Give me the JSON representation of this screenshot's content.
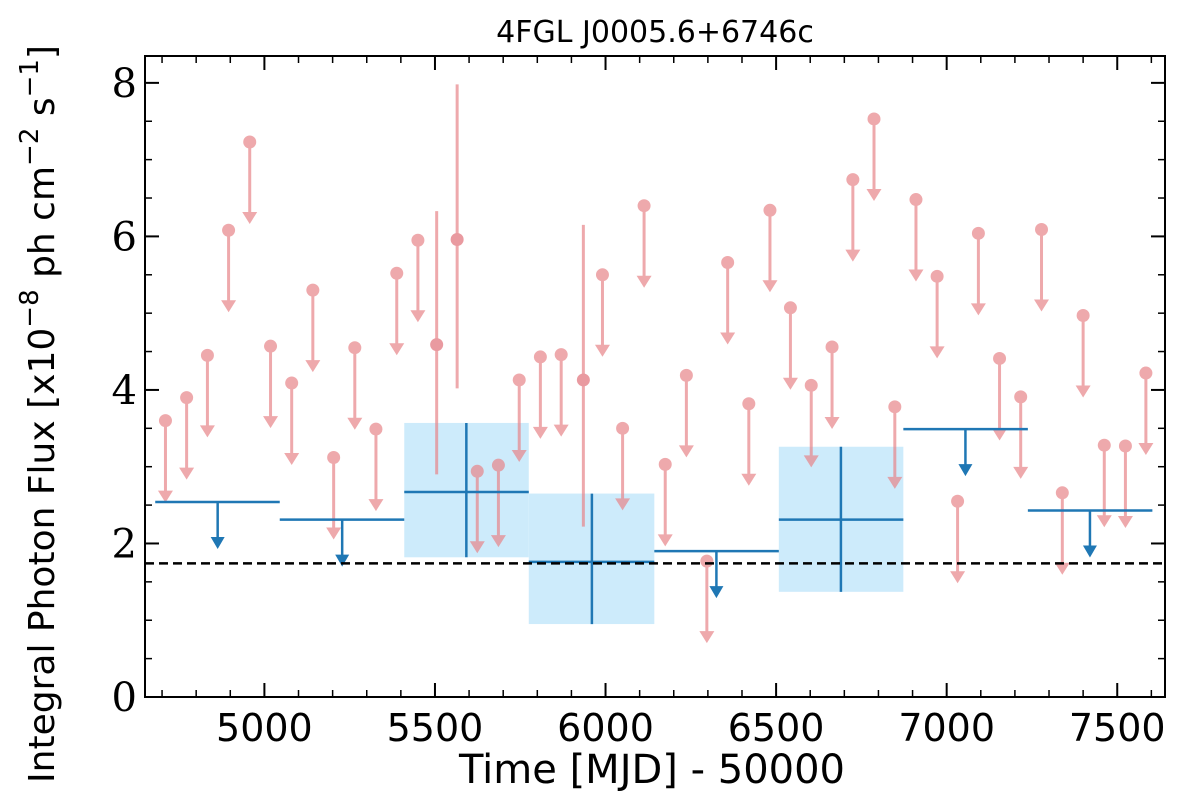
{
  "chart_data": {
    "type": "scatter",
    "title": "4FGL J0005.6+6746c",
    "xlabel": "Time [MJD] - 50000",
    "ylabel_prefix": "Integral Photon Flux [x10",
    "ylabel_exp1": "−8",
    "ylabel_mid": " ph cm",
    "ylabel_exp2": "−2",
    "ylabel_mid2": " s",
    "ylabel_exp3": "−1",
    "ylabel_suffix": "]",
    "xlim": [
      4650,
      7640
    ],
    "ylim": [
      0,
      8.35
    ],
    "xticks": [
      5000,
      5500,
      6000,
      6500,
      7000,
      7500
    ],
    "yticks": [
      0,
      2,
      4,
      6,
      8
    ],
    "xtick_labels": [
      "5000",
      "5500",
      "6000",
      "6500",
      "7000",
      "7500"
    ],
    "ytick_labels": [
      "0",
      "2",
      "4",
      "6",
      "8"
    ],
    "reference_flux": 1.74,
    "colors": {
      "short_bins": "#e8858a",
      "long_bins": "#1f77b4",
      "error_box": "#cdebfb",
      "reference_line": "#000000"
    },
    "short_bin_upper_limits": [
      {
        "x": 4710,
        "y": 3.6
      },
      {
        "x": 4772,
        "y": 3.9
      },
      {
        "x": 4833,
        "y": 4.45
      },
      {
        "x": 4895,
        "y": 6.08
      },
      {
        "x": 4957,
        "y": 7.23
      },
      {
        "x": 5018,
        "y": 4.57
      },
      {
        "x": 5080,
        "y": 4.09
      },
      {
        "x": 5142,
        "y": 5.3
      },
      {
        "x": 5203,
        "y": 3.12
      },
      {
        "x": 5265,
        "y": 4.55
      },
      {
        "x": 5327,
        "y": 3.49
      },
      {
        "x": 5388,
        "y": 5.52
      },
      {
        "x": 5450,
        "y": 5.95
      },
      {
        "x": 5624,
        "y": 2.94
      },
      {
        "x": 5686,
        "y": 3.02
      },
      {
        "x": 5747,
        "y": 4.13
      },
      {
        "x": 5809,
        "y": 4.43
      },
      {
        "x": 5870,
        "y": 4.46
      },
      {
        "x": 6050,
        "y": 3.5
      },
      {
        "x": 5991,
        "y": 5.5
      },
      {
        "x": 6113,
        "y": 6.4
      },
      {
        "x": 6175,
        "y": 3.03
      },
      {
        "x": 6237,
        "y": 4.19
      },
      {
        "x": 6297,
        "y": 1.77
      },
      {
        "x": 6358,
        "y": 5.66
      },
      {
        "x": 6420,
        "y": 3.82
      },
      {
        "x": 6482,
        "y": 6.34
      },
      {
        "x": 6542,
        "y": 5.07
      },
      {
        "x": 6603,
        "y": 4.06
      },
      {
        "x": 6664,
        "y": 4.56
      },
      {
        "x": 6725,
        "y": 6.74
      },
      {
        "x": 6787,
        "y": 7.53
      },
      {
        "x": 6848,
        "y": 3.78
      },
      {
        "x": 6910,
        "y": 6.48
      },
      {
        "x": 6972,
        "y": 5.48
      },
      {
        "x": 7032,
        "y": 2.55
      },
      {
        "x": 7093,
        "y": 6.04
      },
      {
        "x": 7155,
        "y": 4.41
      },
      {
        "x": 7217,
        "y": 3.91
      },
      {
        "x": 7278,
        "y": 6.09
      },
      {
        "x": 7339,
        "y": 2.66
      },
      {
        "x": 7400,
        "y": 4.97
      },
      {
        "x": 7462,
        "y": 3.28
      },
      {
        "x": 7524,
        "y": 3.27
      },
      {
        "x": 7584,
        "y": 4.22
      }
    ],
    "short_bin_detections": [
      {
        "x": 5505,
        "y": 4.59,
        "ylo": 2.9,
        "yhi": 6.33
      },
      {
        "x": 5565,
        "y": 5.96,
        "ylo": 4.02,
        "yhi": 7.98
      },
      {
        "x": 5935,
        "y": 4.13,
        "ylo": 2.22,
        "yhi": 6.15
      }
    ],
    "long_bin_upper_limits": [
      {
        "x0": 4680,
        "x1": 5045,
        "xc": 4863,
        "y": 2.54
      },
      {
        "x0": 5045,
        "x1": 5410,
        "xc": 5228,
        "y": 2.31
      },
      {
        "x0": 6143,
        "x1": 6508,
        "xc": 6325,
        "y": 1.9
      },
      {
        "x0": 6873,
        "x1": 7238,
        "xc": 7055,
        "y": 3.49
      },
      {
        "x0": 7238,
        "x1": 7603,
        "xc": 7420,
        "y": 2.43
      }
    ],
    "long_bin_detections": [
      {
        "x0": 5410,
        "x1": 5775,
        "xc": 5592,
        "y": 2.67,
        "ylo": 1.82,
        "yhi": 3.57
      },
      {
        "x0": 5775,
        "x1": 6143,
        "xc": 5960,
        "y": 1.76,
        "ylo": 0.95,
        "yhi": 2.65
      },
      {
        "x0": 6508,
        "x1": 6873,
        "xc": 6690,
        "y": 2.31,
        "ylo": 1.37,
        "yhi": 3.26
      }
    ]
  }
}
